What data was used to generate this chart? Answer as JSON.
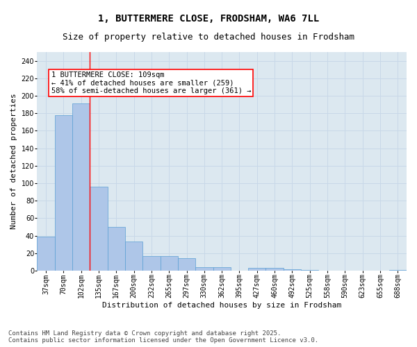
{
  "title": "1, BUTTERMERE CLOSE, FRODSHAM, WA6 7LL",
  "subtitle": "Size of property relative to detached houses in Frodsham",
  "xlabel": "Distribution of detached houses by size in Frodsham",
  "ylabel": "Number of detached properties",
  "categories": [
    "37sqm",
    "70sqm",
    "102sqm",
    "135sqm",
    "167sqm",
    "200sqm",
    "232sqm",
    "265sqm",
    "297sqm",
    "330sqm",
    "362sqm",
    "395sqm",
    "427sqm",
    "460sqm",
    "492sqm",
    "525sqm",
    "558sqm",
    "590sqm",
    "623sqm",
    "655sqm",
    "688sqm"
  ],
  "values": [
    39,
    178,
    191,
    96,
    50,
    33,
    17,
    17,
    14,
    4,
    4,
    0,
    3,
    3,
    2,
    1,
    0,
    0,
    0,
    0,
    1
  ],
  "bar_color": "#aec6e8",
  "bar_edge_color": "#5a9fd4",
  "red_line_x": 2.5,
  "annotation_text": "1 BUTTERMERE CLOSE: 109sqm\n← 41% of detached houses are smaller (259)\n58% of semi-detached houses are larger (361) →",
  "annotation_box_color": "white",
  "annotation_box_edge_color": "red",
  "grid_color": "#c8d8e8",
  "background_color": "#dce8f0",
  "ylim": [
    0,
    250
  ],
  "yticks": [
    0,
    20,
    40,
    60,
    80,
    100,
    120,
    140,
    160,
    180,
    200,
    220,
    240
  ],
  "footer": "Contains HM Land Registry data © Crown copyright and database right 2025.\nContains public sector information licensed under the Open Government Licence v3.0.",
  "title_fontsize": 10,
  "subtitle_fontsize": 9,
  "axis_label_fontsize": 8,
  "tick_fontsize": 7,
  "annotation_fontsize": 7.5,
  "footer_fontsize": 6.5
}
